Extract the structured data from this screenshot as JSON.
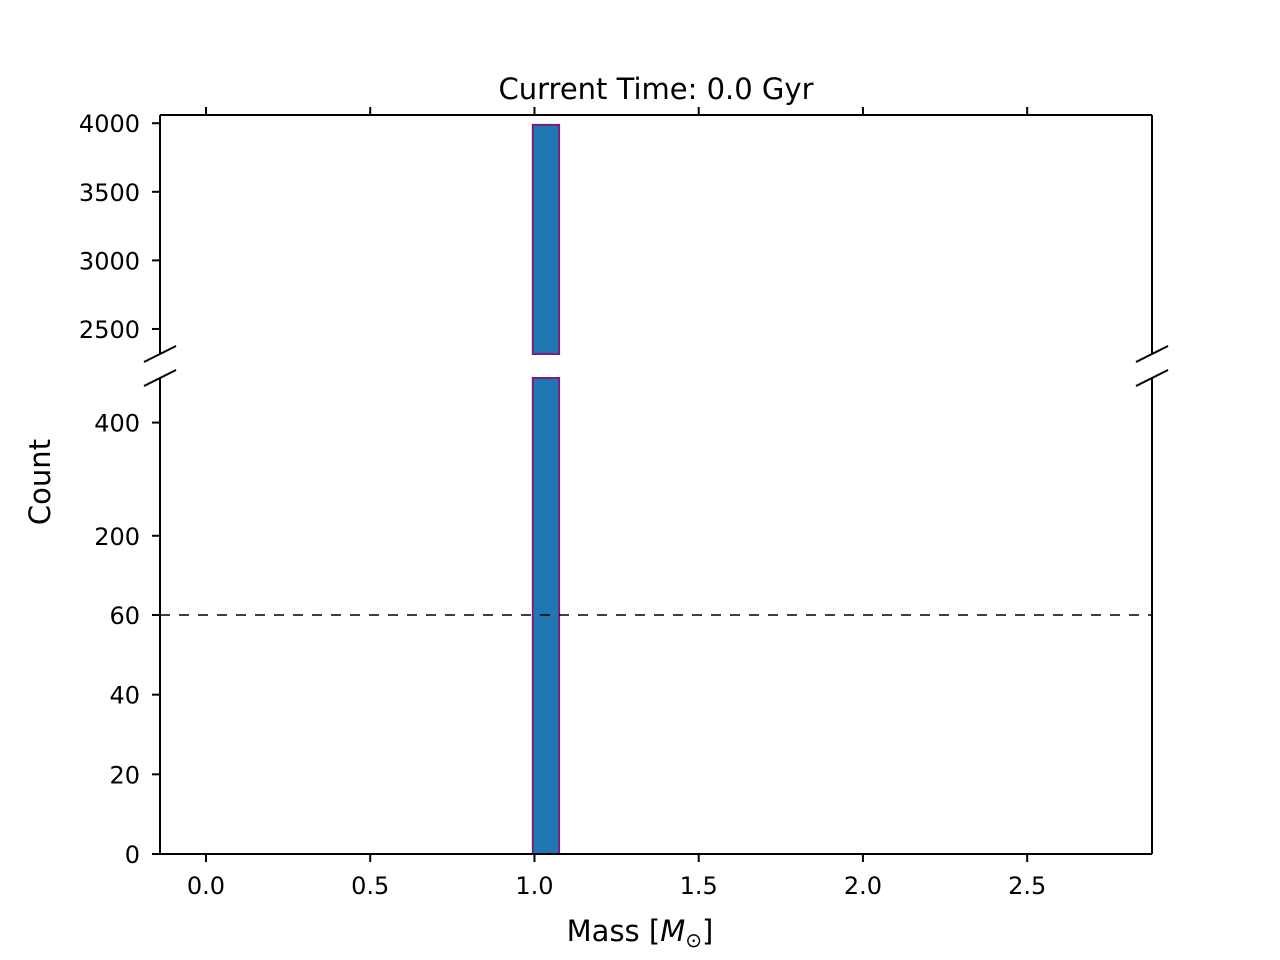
{
  "chart_data": {
    "type": "bar",
    "title": "Current Time: 0.0 Gyr",
    "xlabel": "Mass [",
    "xlabel_symbol": "M",
    "xlabel_subscript": "⊙",
    "xlabel_end": "]",
    "ylabel": "Count",
    "xlim": [
      -0.14,
      2.88
    ],
    "x_ticks": [
      {
        "value": 0.0,
        "label": "0.0"
      },
      {
        "value": 0.5,
        "label": "0.5"
      },
      {
        "value": 1.0,
        "label": "1.0"
      },
      {
        "value": 1.5,
        "label": "1.5"
      },
      {
        "value": 2.0,
        "label": "2.0"
      },
      {
        "value": 2.5,
        "label": "2.5"
      }
    ],
    "upper_panel": {
      "ylim": [
        2230,
        4060
      ],
      "y_ticks": [
        {
          "value": 2500,
          "label": "2500"
        },
        {
          "value": 3000,
          "label": "3000"
        },
        {
          "value": 3500,
          "label": "3500"
        },
        {
          "value": 4000,
          "label": "4000"
        }
      ]
    },
    "lower_panel": {
      "scale": "piecewise-linear",
      "segments": [
        {
          "from": 0,
          "to": 60
        },
        {
          "from": 60,
          "to": 500
        }
      ],
      "ylim": [
        0,
        500
      ],
      "y_ticks": [
        {
          "value": 0,
          "label": "0"
        },
        {
          "value": 20,
          "label": "20"
        },
        {
          "value": 40,
          "label": "40"
        },
        {
          "value": 60,
          "label": "60"
        },
        {
          "value": 200,
          "label": "200"
        },
        {
          "value": 400,
          "label": "400"
        }
      ]
    },
    "reference_line": {
      "y": 60,
      "style": "dashed",
      "color": "#000000"
    },
    "bins": [
      {
        "x_start": 0.995,
        "x_end": 1.075,
        "count": 3988
      }
    ],
    "bar_fill": "#1f77b4",
    "bar_edge": "#7b1f7a",
    "grid": false,
    "legend": "none"
  }
}
